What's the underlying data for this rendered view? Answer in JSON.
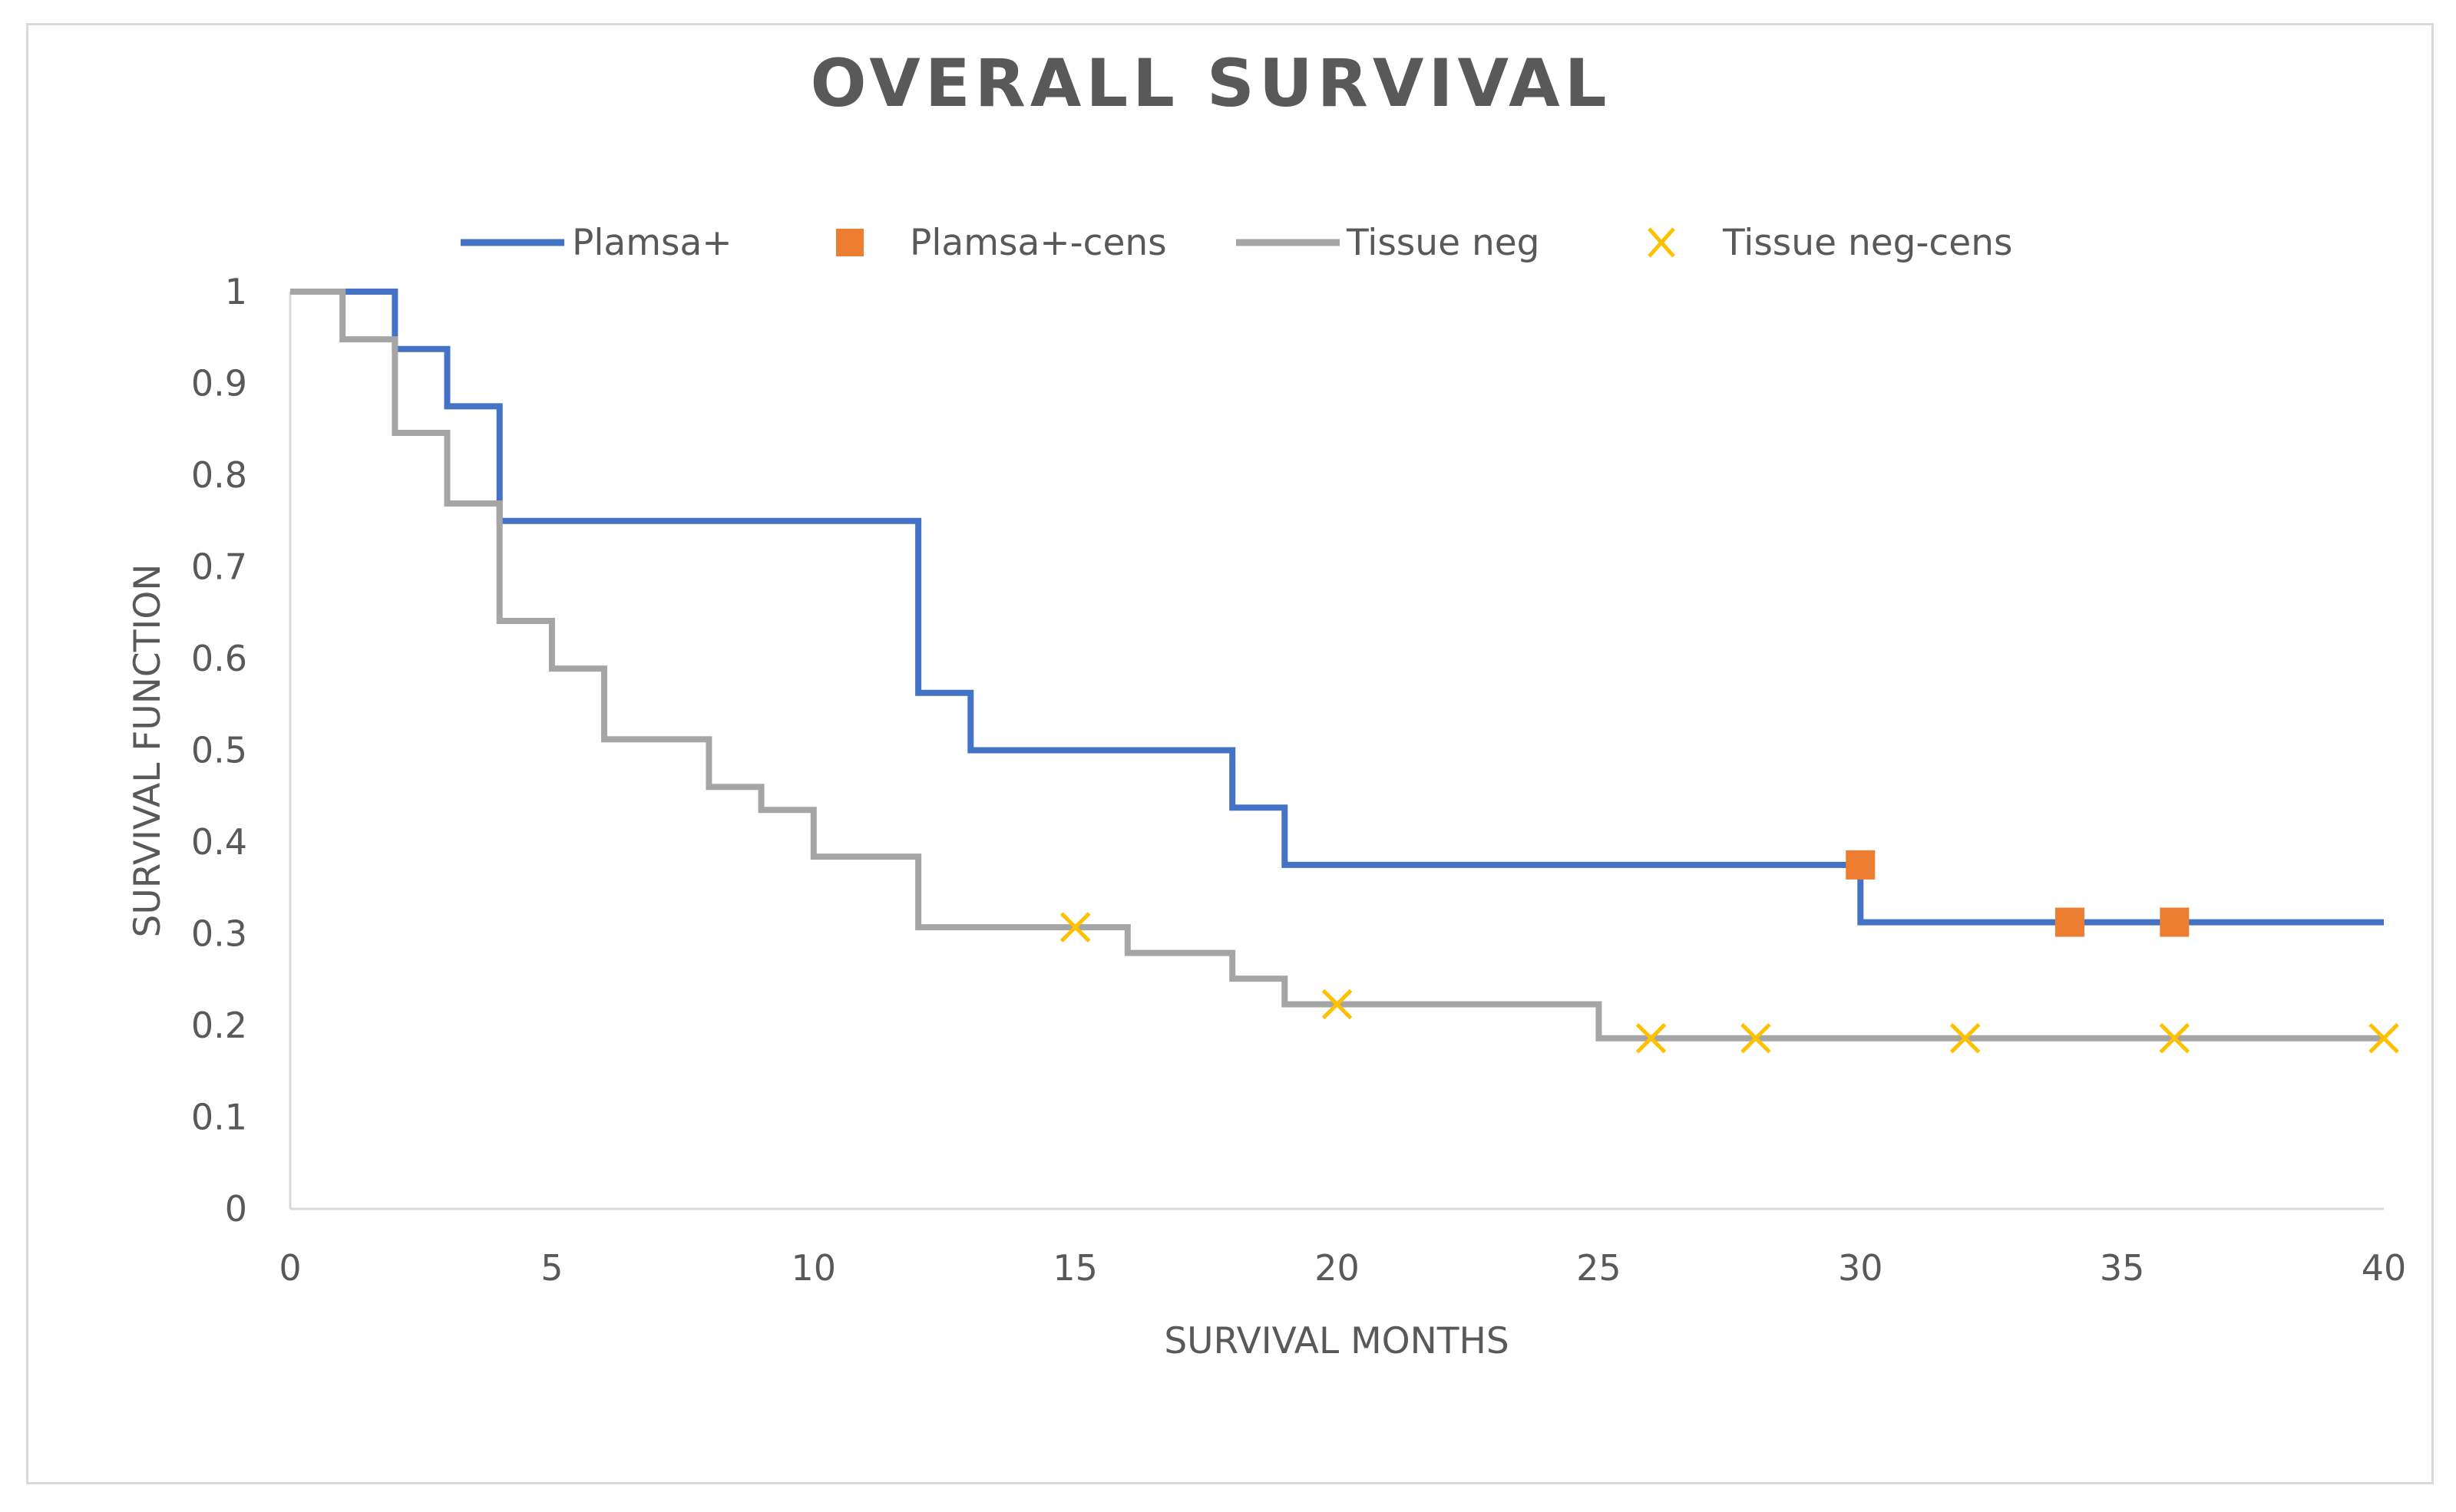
{
  "chart_data": {
    "type": "line",
    "title": "OVERALL SURVIVAL",
    "xlabel": "SURVIVAL MONTHS",
    "ylabel": "SURVIVAL FUNCTION",
    "xlim": [
      0,
      40
    ],
    "ylim": [
      0,
      1
    ],
    "x_ticks": [
      0,
      5,
      10,
      15,
      20,
      25,
      30,
      35,
      40
    ],
    "y_ticks": [
      0,
      0.1,
      0.2,
      0.3,
      0.4,
      0.5,
      0.6,
      0.7,
      0.8,
      0.9,
      1
    ],
    "y_tick_labels": [
      "0",
      "0.1",
      "0.2",
      "0.3",
      "0.4",
      "0.5",
      "0.6",
      "0.7",
      "0.8",
      "0.9",
      "1"
    ],
    "grid": false,
    "legend_position": "top",
    "series": [
      {
        "name": "Plamsa+",
        "kind": "step",
        "color": "#4472c4",
        "points": [
          [
            0,
            1
          ],
          [
            2,
            1
          ],
          [
            2,
            0.9375
          ],
          [
            3,
            0.9375
          ],
          [
            3,
            0.875
          ],
          [
            4,
            0.875
          ],
          [
            4,
            0.75
          ],
          [
            12,
            0.75
          ],
          [
            12,
            0.5625
          ],
          [
            13,
            0.5625
          ],
          [
            13,
            0.5
          ],
          [
            18,
            0.5
          ],
          [
            18,
            0.4375
          ],
          [
            19,
            0.4375
          ],
          [
            19,
            0.375
          ],
          [
            30,
            0.375
          ],
          [
            30,
            0.3125
          ],
          [
            40,
            0.3125
          ]
        ]
      },
      {
        "name": "Plamsa+-cens",
        "kind": "marker",
        "marker": "square",
        "color": "#ed7d31",
        "points": [
          [
            30,
            0.375
          ],
          [
            34,
            0.3125
          ],
          [
            36,
            0.3125
          ]
        ]
      },
      {
        "name": "Tissue neg",
        "kind": "step",
        "color": "#a5a5a5",
        "points": [
          [
            0,
            1
          ],
          [
            1,
            1
          ],
          [
            1,
            0.948
          ],
          [
            2,
            0.948
          ],
          [
            2,
            0.846
          ],
          [
            3,
            0.846
          ],
          [
            3,
            0.769
          ],
          [
            4,
            0.769
          ],
          [
            4,
            0.641
          ],
          [
            5,
            0.641
          ],
          [
            5,
            0.589
          ],
          [
            6,
            0.589
          ],
          [
            6,
            0.512
          ],
          [
            8,
            0.512
          ],
          [
            8,
            0.46
          ],
          [
            9,
            0.46
          ],
          [
            9,
            0.435
          ],
          [
            10,
            0.435
          ],
          [
            10,
            0.384
          ],
          [
            12,
            0.384
          ],
          [
            12,
            0.307
          ],
          [
            16,
            0.307
          ],
          [
            16,
            0.279
          ],
          [
            18,
            0.279
          ],
          [
            18,
            0.251
          ],
          [
            19,
            0.251
          ],
          [
            19,
            0.223
          ],
          [
            25,
            0.223
          ],
          [
            25,
            0.186
          ],
          [
            40,
            0.186
          ]
        ]
      },
      {
        "name": "Tissue neg-cens",
        "kind": "marker",
        "marker": "x",
        "color": "#ffc000",
        "points": [
          [
            15,
            0.307
          ],
          [
            20,
            0.223
          ],
          [
            26,
            0.186
          ],
          [
            28,
            0.186
          ],
          [
            32,
            0.186
          ],
          [
            36,
            0.186
          ],
          [
            40,
            0.186
          ]
        ]
      }
    ]
  }
}
